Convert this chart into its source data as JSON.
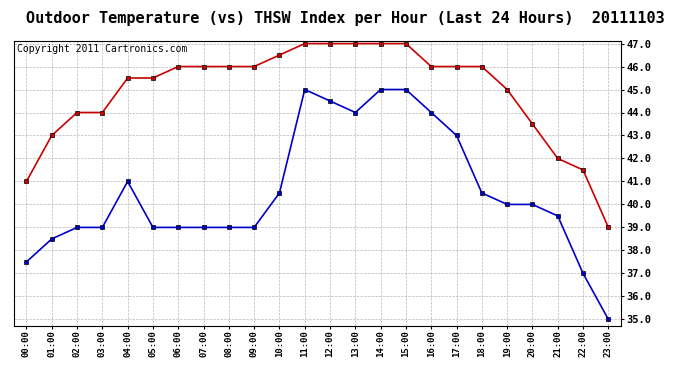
{
  "title": "Outdoor Temperature (vs) THSW Index per Hour (Last 24 Hours)  20111103",
  "copyright": "Copyright 2011 Cartronics.com",
  "hours": [
    "00:00",
    "01:00",
    "02:00",
    "03:00",
    "04:00",
    "05:00",
    "06:00",
    "07:00",
    "08:00",
    "09:00",
    "10:00",
    "11:00",
    "12:00",
    "13:00",
    "14:00",
    "15:00",
    "16:00",
    "17:00",
    "18:00",
    "19:00",
    "20:00",
    "21:00",
    "22:00",
    "23:00"
  ],
  "temp_blue": [
    37.5,
    38.5,
    39.0,
    39.0,
    41.0,
    39.0,
    39.0,
    39.0,
    39.0,
    39.0,
    40.5,
    45.0,
    44.5,
    44.0,
    45.0,
    45.0,
    44.0,
    43.0,
    40.5,
    40.0,
    40.0,
    39.5,
    37.0,
    35.0
  ],
  "thsw_red": [
    41.0,
    43.0,
    44.0,
    44.0,
    45.5,
    45.5,
    46.0,
    46.0,
    46.0,
    46.0,
    46.5,
    47.0,
    47.0,
    47.0,
    47.0,
    47.0,
    46.0,
    46.0,
    46.0,
    45.0,
    43.5,
    42.0,
    41.5,
    39.0
  ],
  "ylim": [
    35.0,
    47.0
  ],
  "yticks": [
    35.0,
    36.0,
    37.0,
    38.0,
    39.0,
    40.0,
    41.0,
    42.0,
    43.0,
    44.0,
    45.0,
    46.0,
    47.0
  ],
  "blue_color": "#0000cc",
  "red_color": "#cc0000",
  "bg_color": "#ffffff",
  "plot_bg": "#ffffff",
  "grid_color": "#999999",
  "title_fontsize": 11,
  "copyright_fontsize": 7,
  "marker_size": 3,
  "linewidth": 1.2
}
